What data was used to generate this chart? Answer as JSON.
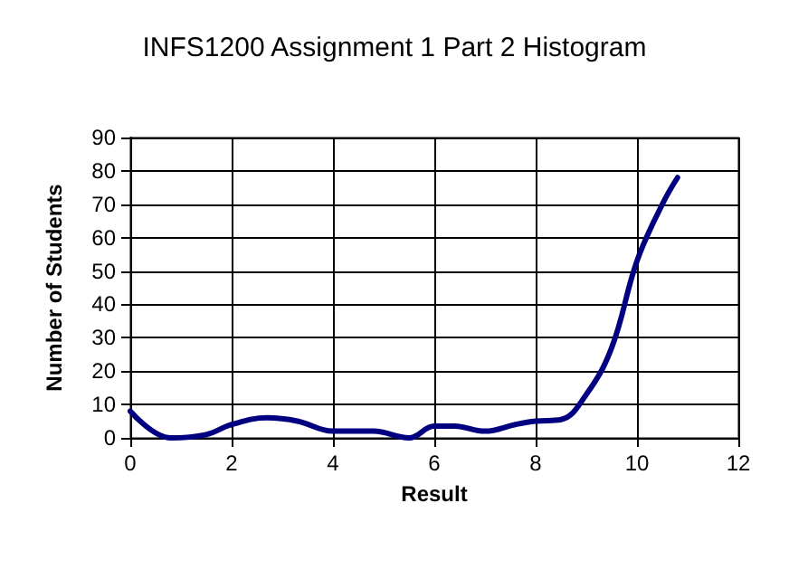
{
  "chart_data": {
    "type": "line",
    "title": "INFS1200 Assignment 1 Part 2 Histogram",
    "xlabel": "Result",
    "ylabel": "Number of Students",
    "x": [
      0,
      0.8,
      1.5,
      2,
      2.7,
      3.3,
      4,
      4.8,
      5.5,
      6,
      6.4,
      7,
      7.6,
      8,
      8.5,
      9,
      9.5,
      10,
      10.5,
      10.8
    ],
    "series": [
      {
        "color": "#000080",
        "values": [
          8,
          0,
          1,
          4,
          6,
          5,
          2,
          2,
          0,
          3.5,
          3.5,
          2,
          4,
          5,
          5.5,
          13,
          27,
          53,
          70,
          78
        ]
      }
    ],
    "xlim": [
      0,
      12
    ],
    "xticks": [
      0,
      2,
      4,
      6,
      8,
      10,
      12
    ],
    "ylim": [
      0,
      90
    ],
    "yticks": [
      0,
      10,
      20,
      30,
      40,
      50,
      60,
      70,
      80,
      90
    ],
    "grid": true,
    "marker": "none",
    "line_style": "solid"
  }
}
